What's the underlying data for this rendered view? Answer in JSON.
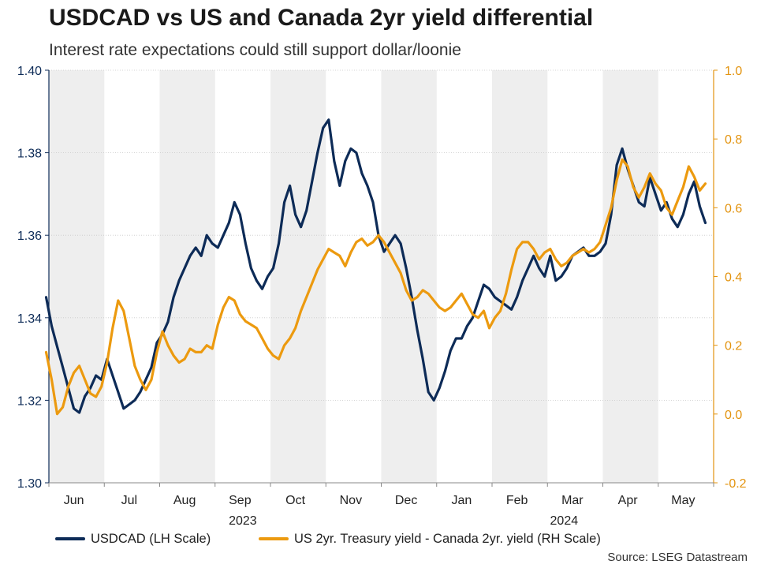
{
  "chart_data": {
    "type": "line",
    "title": "USDCAD vs US and Canada 2yr yield differential",
    "subtitle": "Interest rate expectations could still support dollar/loonie",
    "source": "Source: LSEG Datastream",
    "left_axis": {
      "label": "USDCAD (LH Scale)",
      "range": [
        1.3,
        1.4
      ],
      "ticks": [
        "1.30",
        "1.32",
        "1.34",
        "1.36",
        "1.38",
        "1.40"
      ]
    },
    "right_axis": {
      "label": "US 2yr. Treasury yield - Canada 2yr. yield (RH Scale)",
      "range": [
        -0.2,
        1.0
      ],
      "ticks": [
        "-0.2",
        "0.0",
        "0.2",
        "0.4",
        "0.6",
        "0.8",
        "1.0"
      ]
    },
    "x_axis": {
      "range": [
        0,
        12
      ],
      "months": [
        "Jun",
        "Jul",
        "Aug",
        "Sep",
        "Oct",
        "Nov",
        "Dec",
        "Jan",
        "Feb",
        "Mar",
        "Apr",
        "May"
      ],
      "years": [
        {
          "label": "2023",
          "at": 3.5
        },
        {
          "label": "2024",
          "at": 9.3
        }
      ]
    },
    "colors": {
      "usdcad": "#0d2b57",
      "spread": "#ec9a0f",
      "axis_left": "#0d2b57",
      "axis_right": "#e39410",
      "band": "#eeeeee"
    },
    "series": [
      {
        "name": "USDCAD (LH Scale)",
        "axis": "left",
        "x": [
          -0.05,
          0.05,
          0.15,
          0.25,
          0.35,
          0.45,
          0.55,
          0.65,
          0.75,
          0.85,
          0.95,
          1.05,
          1.15,
          1.25,
          1.35,
          1.45,
          1.55,
          1.65,
          1.75,
          1.85,
          1.95,
          2.05,
          2.15,
          2.25,
          2.35,
          2.45,
          2.55,
          2.65,
          2.75,
          2.85,
          2.95,
          3.05,
          3.15,
          3.25,
          3.35,
          3.45,
          3.55,
          3.65,
          3.75,
          3.85,
          3.95,
          4.05,
          4.15,
          4.25,
          4.35,
          4.45,
          4.55,
          4.65,
          4.75,
          4.85,
          4.95,
          5.05,
          5.15,
          5.25,
          5.35,
          5.45,
          5.55,
          5.65,
          5.75,
          5.85,
          5.95,
          6.05,
          6.15,
          6.25,
          6.35,
          6.45,
          6.55,
          6.65,
          6.75,
          6.85,
          6.95,
          7.05,
          7.15,
          7.25,
          7.35,
          7.45,
          7.55,
          7.65,
          7.75,
          7.85,
          7.95,
          8.05,
          8.15,
          8.25,
          8.35,
          8.45,
          8.55,
          8.65,
          8.75,
          8.85,
          8.95,
          9.05,
          9.15,
          9.25,
          9.35,
          9.45,
          9.55,
          9.65,
          9.75,
          9.85,
          9.95,
          10.05,
          10.15,
          10.25,
          10.35,
          10.45,
          10.55,
          10.65,
          10.75,
          10.85,
          10.95,
          11.05,
          11.15,
          11.25,
          11.35,
          11.45,
          11.55,
          11.65,
          11.75,
          11.85
        ],
        "values": [
          1.345,
          1.338,
          1.333,
          1.328,
          1.323,
          1.318,
          1.317,
          1.321,
          1.323,
          1.326,
          1.325,
          1.33,
          1.326,
          1.322,
          1.318,
          1.319,
          1.32,
          1.322,
          1.325,
          1.328,
          1.334,
          1.336,
          1.339,
          1.345,
          1.349,
          1.352,
          1.355,
          1.357,
          1.355,
          1.36,
          1.358,
          1.357,
          1.36,
          1.363,
          1.368,
          1.365,
          1.358,
          1.352,
          1.349,
          1.347,
          1.35,
          1.352,
          1.358,
          1.368,
          1.372,
          1.365,
          1.362,
          1.366,
          1.373,
          1.38,
          1.386,
          1.388,
          1.378,
          1.372,
          1.378,
          1.381,
          1.38,
          1.375,
          1.372,
          1.368,
          1.36,
          1.356,
          1.358,
          1.36,
          1.358,
          1.352,
          1.345,
          1.337,
          1.33,
          1.322,
          1.32,
          1.323,
          1.327,
          1.332,
          1.335,
          1.335,
          1.338,
          1.34,
          1.344,
          1.348,
          1.347,
          1.345,
          1.344,
          1.343,
          1.342,
          1.345,
          1.349,
          1.352,
          1.355,
          1.352,
          1.35,
          1.355,
          1.349,
          1.35,
          1.352,
          1.355,
          1.356,
          1.357,
          1.355,
          1.355,
          1.356,
          1.358,
          1.365,
          1.377,
          1.381,
          1.376,
          1.372,
          1.368,
          1.367,
          1.374,
          1.37,
          1.366,
          1.368,
          1.364,
          1.362,
          1.365,
          1.37,
          1.373,
          1.367,
          1.363
        ]
      },
      {
        "name": "US 2yr. Treasury yield - Canada 2yr. yield (RH Scale)",
        "axis": "right",
        "x": [
          -0.05,
          0.05,
          0.15,
          0.25,
          0.35,
          0.45,
          0.55,
          0.65,
          0.75,
          0.85,
          0.95,
          1.05,
          1.15,
          1.25,
          1.35,
          1.45,
          1.55,
          1.65,
          1.75,
          1.85,
          1.95,
          2.05,
          2.15,
          2.25,
          2.35,
          2.45,
          2.55,
          2.65,
          2.75,
          2.85,
          2.95,
          3.05,
          3.15,
          3.25,
          3.35,
          3.45,
          3.55,
          3.65,
          3.75,
          3.85,
          3.95,
          4.05,
          4.15,
          4.25,
          4.35,
          4.45,
          4.55,
          4.65,
          4.75,
          4.85,
          4.95,
          5.05,
          5.15,
          5.25,
          5.35,
          5.45,
          5.55,
          5.65,
          5.75,
          5.85,
          5.95,
          6.05,
          6.15,
          6.25,
          6.35,
          6.45,
          6.55,
          6.65,
          6.75,
          6.85,
          6.95,
          7.05,
          7.15,
          7.25,
          7.35,
          7.45,
          7.55,
          7.65,
          7.75,
          7.85,
          7.95,
          8.05,
          8.15,
          8.25,
          8.35,
          8.45,
          8.55,
          8.65,
          8.75,
          8.85,
          8.95,
          9.05,
          9.15,
          9.25,
          9.35,
          9.45,
          9.55,
          9.65,
          9.75,
          9.85,
          9.95,
          10.05,
          10.15,
          10.25,
          10.35,
          10.45,
          10.55,
          10.65,
          10.75,
          10.85,
          10.95,
          11.05,
          11.15,
          11.25,
          11.35,
          11.45,
          11.55,
          11.65,
          11.75,
          11.85
        ],
        "values": [
          0.18,
          0.1,
          0.0,
          0.02,
          0.08,
          0.12,
          0.14,
          0.1,
          0.06,
          0.05,
          0.08,
          0.15,
          0.25,
          0.33,
          0.3,
          0.22,
          0.14,
          0.1,
          0.07,
          0.1,
          0.18,
          0.24,
          0.2,
          0.17,
          0.15,
          0.16,
          0.19,
          0.18,
          0.18,
          0.2,
          0.19,
          0.26,
          0.31,
          0.34,
          0.33,
          0.29,
          0.27,
          0.26,
          0.25,
          0.22,
          0.19,
          0.17,
          0.16,
          0.2,
          0.22,
          0.25,
          0.3,
          0.34,
          0.38,
          0.42,
          0.45,
          0.48,
          0.47,
          0.46,
          0.43,
          0.47,
          0.5,
          0.51,
          0.49,
          0.5,
          0.52,
          0.5,
          0.47,
          0.44,
          0.41,
          0.36,
          0.33,
          0.34,
          0.36,
          0.35,
          0.33,
          0.31,
          0.3,
          0.31,
          0.33,
          0.35,
          0.32,
          0.29,
          0.28,
          0.3,
          0.25,
          0.28,
          0.3,
          0.35,
          0.42,
          0.48,
          0.5,
          0.5,
          0.48,
          0.45,
          0.47,
          0.48,
          0.45,
          0.43,
          0.44,
          0.46,
          0.47,
          0.48,
          0.47,
          0.48,
          0.5,
          0.55,
          0.6,
          0.68,
          0.74,
          0.72,
          0.66,
          0.63,
          0.66,
          0.7,
          0.67,
          0.65,
          0.6,
          0.58,
          0.62,
          0.66,
          0.72,
          0.69,
          0.65,
          0.67
        ]
      }
    ]
  }
}
